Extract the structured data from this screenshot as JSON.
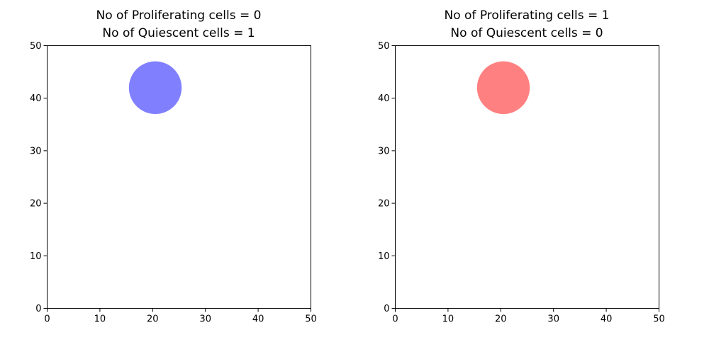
{
  "chart_data": [
    {
      "type": "scatter",
      "title_lines": [
        "No of Proliferating cells = 0",
        "No of Quiescent cells = 1"
      ],
      "xlim": [
        0,
        50
      ],
      "ylim": [
        0,
        50
      ],
      "xticks": [
        0,
        10,
        20,
        30,
        40,
        50
      ],
      "yticks": [
        0,
        10,
        20,
        30,
        40,
        50
      ],
      "grid": false,
      "points": [
        {
          "x": 20.5,
          "y": 42,
          "radius": 5,
          "color": "#8080ff",
          "kind": "quiescent"
        }
      ]
    },
    {
      "type": "scatter",
      "title_lines": [
        "No of Proliferating cells = 1",
        "No of Quiescent cells = 0"
      ],
      "xlim": [
        0,
        50
      ],
      "ylim": [
        0,
        50
      ],
      "xticks": [
        0,
        10,
        20,
        30,
        40,
        50
      ],
      "yticks": [
        0,
        10,
        20,
        30,
        40,
        50
      ],
      "grid": false,
      "points": [
        {
          "x": 20.5,
          "y": 42,
          "radius": 5,
          "color": "#ff8080",
          "kind": "proliferating"
        }
      ]
    }
  ]
}
